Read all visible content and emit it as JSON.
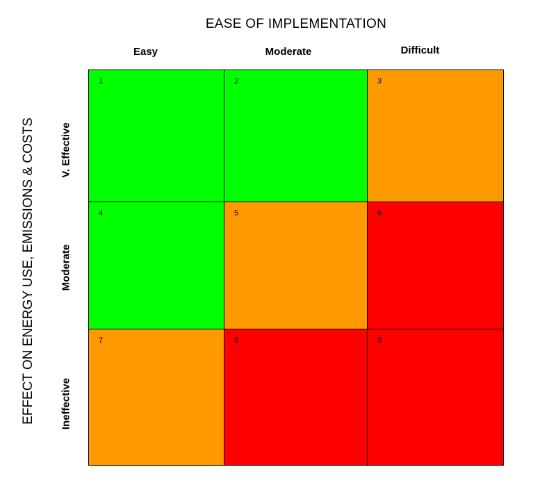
{
  "x_axis_title": "EASE OF IMPLEMENTATION",
  "y_axis_title": "EFFECT ON ENERGY USE, EMISSIONS & COSTS",
  "columns": [
    "Easy",
    "Moderate",
    "Difficult"
  ],
  "rows": [
    "V. Effective",
    "Moderate",
    "Ineffective"
  ],
  "colors": {
    "green": "#00ff00",
    "orange": "#ff9900",
    "red": "#ff0000"
  },
  "cells": [
    {
      "number": "1",
      "color": "green"
    },
    {
      "number": "2",
      "color": "green"
    },
    {
      "number": "3",
      "color": "orange"
    },
    {
      "number": "4",
      "color": "green"
    },
    {
      "number": "5",
      "color": "orange"
    },
    {
      "number": "6",
      "color": "red"
    },
    {
      "number": "7",
      "color": "orange"
    },
    {
      "number": "8",
      "color": "red"
    },
    {
      "number": "9",
      "color": "red"
    }
  ]
}
